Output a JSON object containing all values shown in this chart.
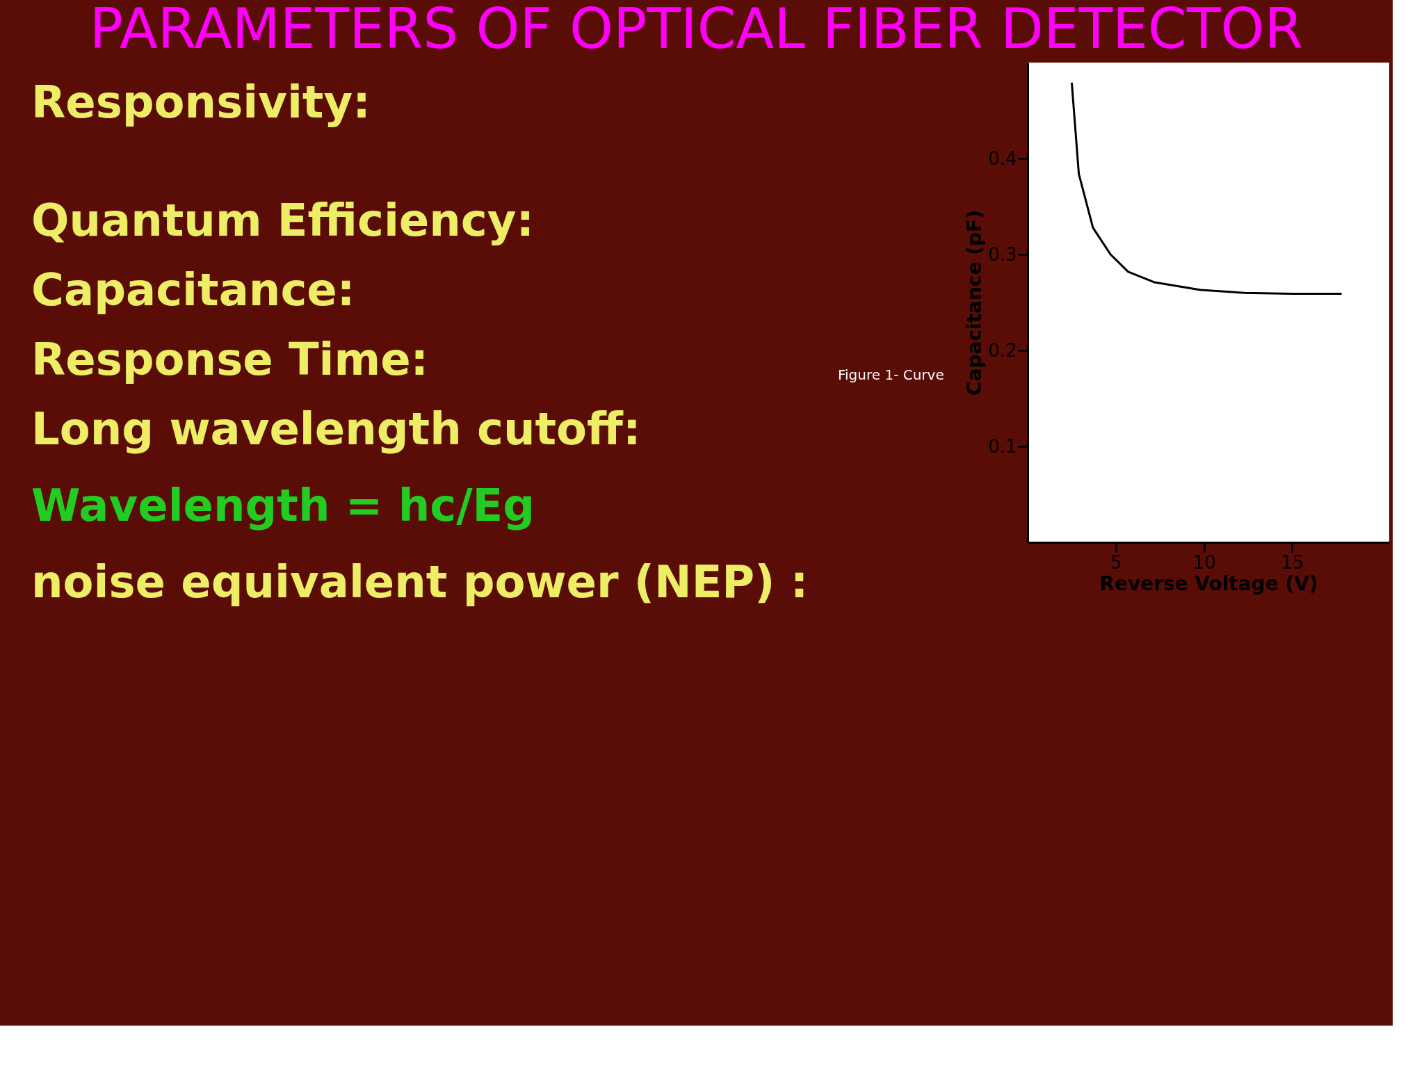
{
  "chart_data": {
    "type": "line",
    "title": "PARAMETERS OF OPTICAL FIBER DETECTOR",
    "xlabel": "Reverse Voltage (V)",
    "ylabel": "Capacitance (pF)",
    "x": [
      2.5,
      2.9,
      3.7,
      4.7,
      5.7,
      7.2,
      9.8,
      12.3,
      15,
      17.8
    ],
    "series": [
      {
        "color": "#000000",
        "values": [
          0.479,
          0.384,
          0.328,
          0.3,
          0.282,
          0.271,
          0.263,
          0.26,
          0.259,
          0.259
        ]
      }
    ],
    "xlim": [
      0,
      20.5
    ],
    "ylim": [
      0,
      0.5
    ],
    "xticks": [
      5,
      10,
      15
    ],
    "yticks": [
      0.1,
      0.2,
      0.3,
      0.4
    ],
    "grid": false,
    "legend": false,
    "marker": "none",
    "line_style": "solid",
    "annotations": [
      "Responsivity:",
      "Quantum Efficiency:",
      "Capacitance:",
      "Response Time:",
      "Long wavelength cutoff:",
      "Wavelength = hc/Eg",
      "noise equivalent power (NEP) :",
      "Figure 1- Curve"
    ]
  }
}
